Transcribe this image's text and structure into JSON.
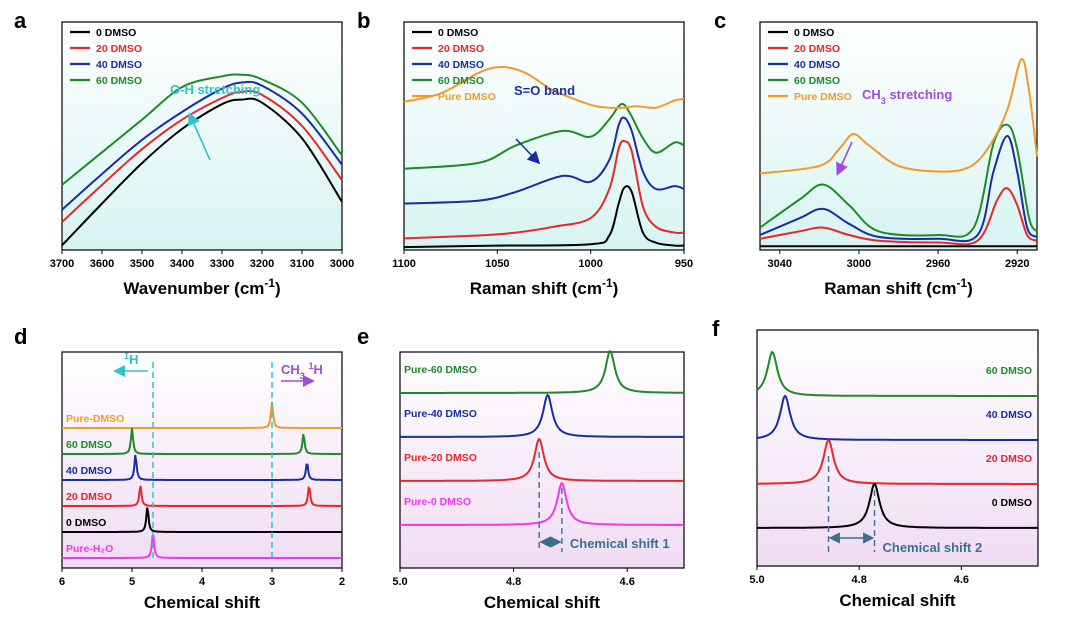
{
  "colors": {
    "black": "#000000",
    "red": "#e8262b",
    "blue": "#1a2ca3",
    "green": "#1e8a2a",
    "orange": "#f39a2c",
    "magenta": "#ee3ae6",
    "cyan": "#2ec4cc",
    "purple": "#a14ddb",
    "teal_annot": "#3d6f8c"
  },
  "chart_data": [
    {
      "panel": "a",
      "type": "line",
      "xlabel": "Wavenumber (cm",
      "xlabel_sup": "-1",
      "xlabel_end": ")",
      "xlim": [
        3700,
        3000
      ],
      "xticks": [
        "3700",
        "3600",
        "3500",
        "3400",
        "3300",
        "3200",
        "3100",
        "3000"
      ],
      "legend": [
        "0   DMSO",
        "20 DMSO",
        "40 DMSO",
        "60 DMSO"
      ],
      "annotation": "O-H stretching",
      "series": [
        {
          "name": "0   DMSO",
          "color": "black",
          "x": [
            3700,
            3600,
            3500,
            3400,
            3300,
            3250,
            3200,
            3100,
            3000
          ],
          "y": [
            0.01,
            0.28,
            0.54,
            0.76,
            0.92,
            0.95,
            0.93,
            0.7,
            0.29
          ]
        },
        {
          "name": "20 DMSO",
          "color": "red",
          "x": [
            3700,
            3600,
            3500,
            3400,
            3300,
            3250,
            3200,
            3100,
            3000
          ],
          "y": [
            0.16,
            0.4,
            0.63,
            0.82,
            0.96,
            1.0,
            0.98,
            0.78,
            0.43
          ]
        },
        {
          "name": "40 DMSO",
          "color": "blue",
          "x": [
            3700,
            3600,
            3500,
            3400,
            3300,
            3250,
            3200,
            3100,
            3000
          ],
          "y": [
            0.24,
            0.47,
            0.69,
            0.87,
            1.02,
            1.06,
            1.04,
            0.86,
            0.53
          ]
        },
        {
          "name": "60 DMSO",
          "color": "green",
          "x": [
            3700,
            3600,
            3500,
            3400,
            3300,
            3250,
            3200,
            3100,
            3000
          ],
          "y": [
            0.4,
            0.61,
            0.82,
            1.03,
            1.1,
            1.11,
            1.08,
            0.93,
            0.59
          ]
        }
      ]
    },
    {
      "panel": "b",
      "type": "line",
      "xlabel": "Raman shift (cm",
      "xlabel_sup": "-1",
      "xlabel_end": ")",
      "xlim": [
        1100,
        950
      ],
      "xticks": [
        "1100",
        "1050",
        "1000",
        "950"
      ],
      "legend": [
        "0   DMSO",
        "20 DMSO",
        "40 DMSO",
        "60 DMSO",
        "Pure DMSO"
      ],
      "annotation": "S=O band",
      "series": [
        {
          "name": "0   DMSO",
          "color": "black",
          "x": [
            1100,
            1050,
            1000,
            990,
            985,
            982,
            978,
            972,
            965,
            955,
            950
          ],
          "y": [
            0.0,
            0.01,
            0.02,
            0.08,
            0.3,
            0.41,
            0.38,
            0.1,
            0.03,
            0.01,
            0.01
          ]
        },
        {
          "name": "20 DMSO",
          "color": "red",
          "x": [
            1100,
            1060,
            1040,
            1020,
            1000,
            990,
            985,
            982,
            978,
            972,
            965,
            955,
            950
          ],
          "y": [
            0.06,
            0.08,
            0.1,
            0.14,
            0.2,
            0.4,
            0.68,
            0.73,
            0.66,
            0.28,
            0.14,
            0.1,
            0.1
          ]
        },
        {
          "name": "40 DMSO",
          "color": "blue",
          "x": [
            1100,
            1060,
            1040,
            1015,
            1000,
            990,
            985,
            982,
            978,
            972,
            965,
            955,
            950
          ],
          "y": [
            0.3,
            0.32,
            0.38,
            0.49,
            0.45,
            0.6,
            0.84,
            0.89,
            0.8,
            0.52,
            0.4,
            0.42,
            0.4
          ]
        },
        {
          "name": "60 DMSO",
          "color": "green",
          "x": [
            1100,
            1060,
            1040,
            1015,
            1000,
            990,
            985,
            982,
            978,
            972,
            965,
            955,
            950
          ],
          "y": [
            0.54,
            0.58,
            0.7,
            0.8,
            0.76,
            0.88,
            0.97,
            0.98,
            0.9,
            0.75,
            0.65,
            0.72,
            0.7
          ]
        },
        {
          "name": "Pure DMSO",
          "color": "orange",
          "x": [
            1100,
            1080,
            1060,
            1048,
            1035,
            1020,
            1000,
            990,
            982,
            975,
            965,
            955,
            950
          ],
          "y": [
            1.0,
            1.06,
            1.2,
            1.24,
            1.2,
            1.08,
            0.98,
            0.96,
            0.96,
            0.97,
            0.96,
            1.01,
            1.02
          ]
        }
      ]
    },
    {
      "panel": "c",
      "type": "line",
      "xlabel": "Raman shift (cm",
      "xlabel_sup": "-1",
      "xlabel_end": ")",
      "xlim": [
        3050,
        2910
      ],
      "xticks": [
        "3040",
        "3000",
        "2960",
        "2920"
      ],
      "legend": [
        "0   DMSO",
        "20 DMSO",
        "40 DMSO",
        "60 DMSO",
        "Pure DMSO"
      ],
      "annotation": "CH",
      "annotation_sub": "3",
      "annotation_end": " stretching",
      "series": [
        {
          "name": "0   DMSO",
          "color": "black",
          "x": [
            3050,
            3000,
            2950,
            2910
          ],
          "y": [
            0.0,
            0.0,
            0.0,
            0.0
          ]
        },
        {
          "name": "20 DMSO",
          "color": "red",
          "x": [
            3050,
            3030,
            3018,
            3005,
            2990,
            2960,
            2940,
            2930,
            2925,
            2920,
            2915,
            2910
          ],
          "y": [
            0.04,
            0.08,
            0.1,
            0.06,
            0.03,
            0.02,
            0.03,
            0.25,
            0.31,
            0.22,
            0.06,
            0.03
          ]
        },
        {
          "name": "40 DMSO",
          "color": "blue",
          "x": [
            3050,
            3030,
            3018,
            3005,
            2990,
            2960,
            2940,
            2932,
            2925,
            2920,
            2915,
            2910
          ],
          "y": [
            0.06,
            0.15,
            0.2,
            0.12,
            0.05,
            0.04,
            0.06,
            0.4,
            0.59,
            0.4,
            0.1,
            0.05
          ]
        },
        {
          "name": "60 DMSO",
          "color": "green",
          "x": [
            3050,
            3030,
            3018,
            3005,
            2990,
            2960,
            2942,
            2932,
            2925,
            2920,
            2914,
            2910
          ],
          "y": [
            0.1,
            0.25,
            0.33,
            0.22,
            0.08,
            0.06,
            0.1,
            0.55,
            0.65,
            0.52,
            0.15,
            0.08
          ]
        },
        {
          "name": "Pure DMSO",
          "color": "orange",
          "x": [
            3050,
            3020,
            3010,
            3003,
            2995,
            2980,
            2960,
            2945,
            2935,
            2925,
            2918,
            2914,
            2910
          ],
          "y": [
            0.39,
            0.43,
            0.52,
            0.6,
            0.54,
            0.43,
            0.4,
            0.42,
            0.52,
            0.73,
            1.0,
            0.83,
            0.48
          ]
        }
      ]
    },
    {
      "panel": "d",
      "type": "line",
      "xlabel": "Chemical shift",
      "xlim": [
        6,
        2
      ],
      "xticks": [
        "6",
        "5",
        "4",
        "3",
        "2"
      ],
      "labels": [
        "Pure-DMSO",
        "60  DMSO",
        "40  DMSO",
        "20  DMSO",
        "0   DMSO",
        "Pure-H₂O"
      ],
      "annot_h": "H",
      "annot_h_sup": "1",
      "annot_ch3": "CH",
      "annot_ch3_sub": "3",
      "annot_ch3_h": "H",
      "annot_ch3_h_sup": "1",
      "dashed_x": [
        4.7,
        3.0
      ],
      "series": [
        {
          "name": "Pure-DMSO",
          "color": "orange",
          "offset": 5,
          "peaks": [
            [
              3.0,
              1.0
            ]
          ]
        },
        {
          "name": "60  DMSO",
          "color": "green",
          "offset": 4,
          "peaks": [
            [
              5.0,
              1.0
            ],
            [
              2.55,
              0.8
            ]
          ]
        },
        {
          "name": "40  DMSO",
          "color": "blue",
          "offset": 3,
          "peaks": [
            [
              4.95,
              1.0
            ],
            [
              2.5,
              0.7
            ]
          ]
        },
        {
          "name": "20  DMSO",
          "color": "red",
          "offset": 2,
          "peaks": [
            [
              4.88,
              0.8
            ],
            [
              2.47,
              0.8
            ]
          ]
        },
        {
          "name": "0   DMSO",
          "color": "black",
          "offset": 1,
          "peaks": [
            [
              4.78,
              1.0
            ]
          ]
        },
        {
          "name": "Pure-H₂O",
          "color": "magenta",
          "offset": 0,
          "peaks": [
            [
              4.7,
              1.0
            ]
          ]
        }
      ]
    },
    {
      "panel": "e",
      "type": "line",
      "xlabel": "Chemical shift",
      "xlim": [
        5.0,
        4.5
      ],
      "xticks": [
        "5.0",
        "4.8",
        "4.6"
      ],
      "labels": [
        "Pure-60 DMSO",
        "Pure-40 DMSO",
        "Pure-20 DMSO",
        "Pure-0   DMSO"
      ],
      "annotation": "Chemical shift 1",
      "series": [
        {
          "name": "Pure-60 DMSO",
          "color": "green",
          "offset": 3,
          "peaks": [
            [
              4.63,
              1.0
            ]
          ]
        },
        {
          "name": "Pure-40 DMSO",
          "color": "blue",
          "offset": 2,
          "peaks": [
            [
              4.74,
              1.0
            ]
          ]
        },
        {
          "name": "Pure-20 DMSO",
          "color": "red",
          "offset": 1,
          "peaks": [
            [
              4.755,
              1.0
            ]
          ]
        },
        {
          "name": "Pure-0   DMSO",
          "color": "magenta",
          "offset": 0,
          "peaks": [
            [
              4.715,
              1.0
            ]
          ]
        }
      ]
    },
    {
      "panel": "f",
      "type": "line",
      "xlabel": "Chemical shift",
      "xlim": [
        5.0,
        4.45
      ],
      "xticks": [
        "5.0",
        "4.8",
        "4.6"
      ],
      "labels": [
        "60 DMSO",
        "40 DMSO",
        "20 DMSO",
        "0   DMSO"
      ],
      "annotation": "Chemical shift 2",
      "series": [
        {
          "name": "60 DMSO",
          "color": "green",
          "offset": 3,
          "peaks": [
            [
              4.97,
              1.0
            ]
          ]
        },
        {
          "name": "40 DMSO",
          "color": "blue",
          "offset": 2,
          "peaks": [
            [
              4.945,
              1.0
            ]
          ]
        },
        {
          "name": "20 DMSO",
          "color": "red",
          "offset": 1,
          "peaks": [
            [
              4.86,
              1.0
            ]
          ]
        },
        {
          "name": "0   DMSO",
          "color": "black",
          "offset": 0,
          "peaks": [
            [
              4.77,
              1.0
            ]
          ]
        }
      ]
    }
  ]
}
